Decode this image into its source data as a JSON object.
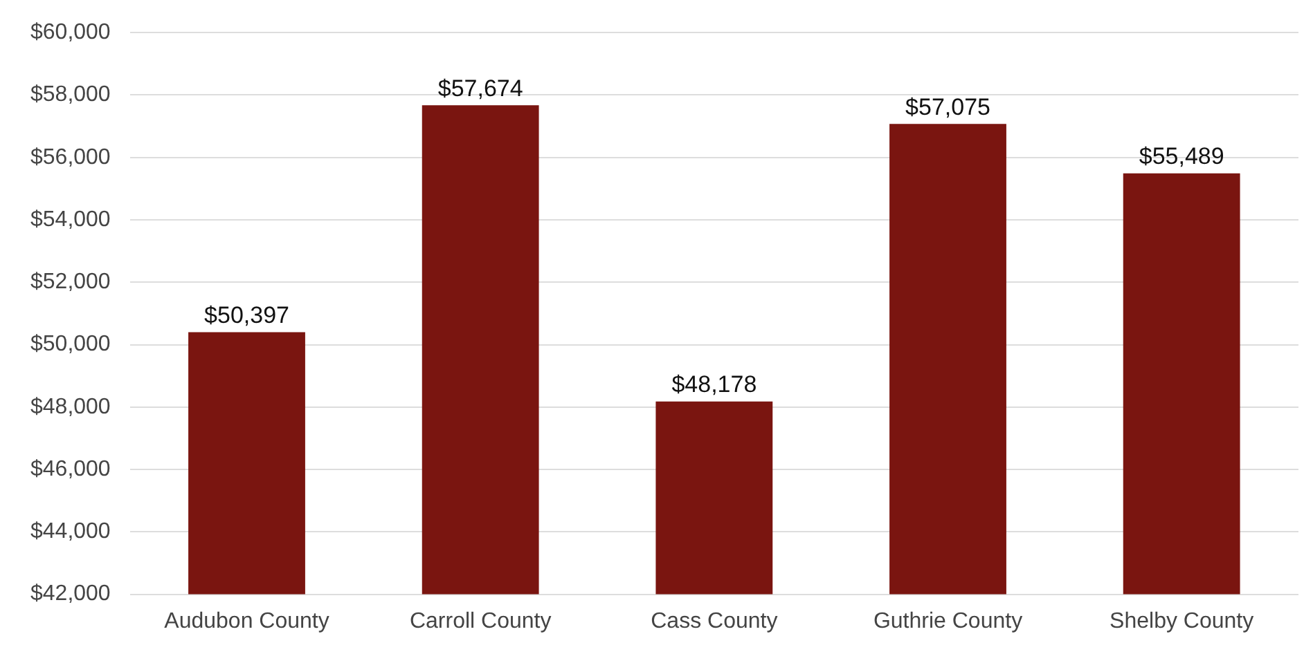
{
  "chart_data": {
    "type": "bar",
    "categories": [
      "Audubon County",
      "Carroll County",
      "Cass County",
      "Guthrie County",
      "Shelby County"
    ],
    "values": [
      50397,
      57674,
      48178,
      57075,
      55489
    ],
    "value_labels": [
      "$50,397",
      "$57,674",
      "$48,178",
      "$57,075",
      "$55,489"
    ],
    "color": "#7a1510",
    "ylim": [
      42000,
      60000
    ],
    "yticks": [
      {
        "value": 42000,
        "label": "$42,000"
      },
      {
        "value": 44000,
        "label": "$44,000"
      },
      {
        "value": 46000,
        "label": "$46,000"
      },
      {
        "value": 48000,
        "label": "$48,000"
      },
      {
        "value": 50000,
        "label": "$50,000"
      },
      {
        "value": 52000,
        "label": "$52,000"
      },
      {
        "value": 54000,
        "label": "$54,000"
      },
      {
        "value": 56000,
        "label": "$56,000"
      },
      {
        "value": 58000,
        "label": "$58,000"
      },
      {
        "value": 60000,
        "label": "$60,000"
      }
    ],
    "grid": "y"
  }
}
